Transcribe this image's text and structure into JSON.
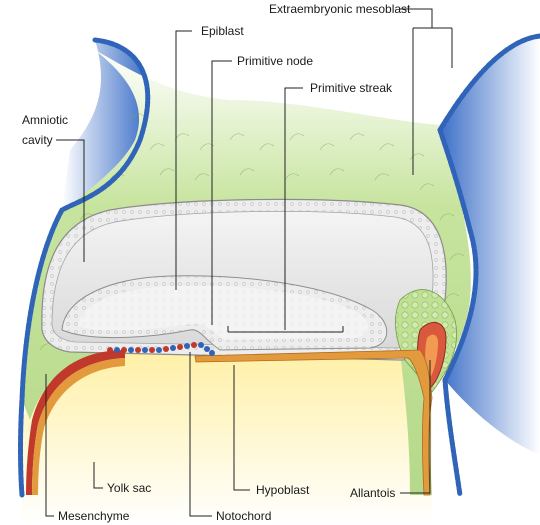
{
  "labels": {
    "epiblast": "Epiblast",
    "extraembryonic_mesoblast": "Extraembryonic mesoblast",
    "primitive_node": "Primitive node",
    "primitive_streak": "Primitive streak",
    "amniotic_cavity_1": "Amniotic",
    "amniotic_cavity_2": "cavity",
    "yolk_sac": "Yolk sac",
    "hypoblast": "Hypoblast",
    "allantois": "Allantois",
    "mesenchyme": "Mesenchyme",
    "notochord": "Notochord"
  },
  "colors": {
    "ectoderm_blue": "#2f64b8",
    "blue_fill": "#7e9fe0",
    "mesoderm_green": "#a9d27a",
    "yolk_yellow": "#fff3b0",
    "cavity_gray": "#e7e7e7",
    "disc_gray": "#f3f3f3",
    "hypoblast_orange": "#e39a3c",
    "red_layer": "#c0392b"
  }
}
